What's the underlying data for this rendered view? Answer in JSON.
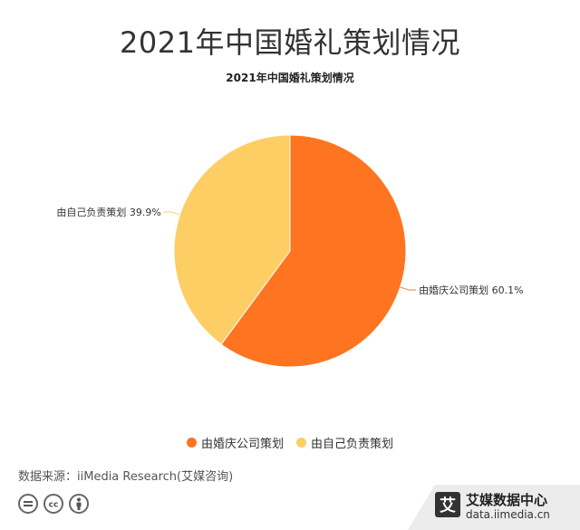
{
  "header": {
    "title": "2021年中国婚礼策划情况",
    "subtitle": "2021年中国婚礼策划情况"
  },
  "chart_data": {
    "type": "pie",
    "title": "2021年中国婚礼策划情况",
    "slices": [
      {
        "label": "由婚庆公司策划",
        "value": 60.1,
        "display": "由婚庆公司策划 60.1%",
        "color": "#FF7420"
      },
      {
        "label": "由自己负责策划",
        "value": 39.9,
        "display": "由自己负责策划 39.9%",
        "color": "#FDCE63"
      }
    ],
    "legend": {
      "position": "bottom",
      "items": [
        "由婚庆公司策划",
        "由自己负责策划"
      ]
    }
  },
  "footer": {
    "source": "数据来源：iiMedia Research(艾媒咨询)",
    "brand_name": "艾媒数据中心",
    "brand_url": "data.iimedia.cn",
    "brand_logo_char": "艾"
  },
  "icons": [
    "equals-icon",
    "cc-icon",
    "person-icon"
  ]
}
